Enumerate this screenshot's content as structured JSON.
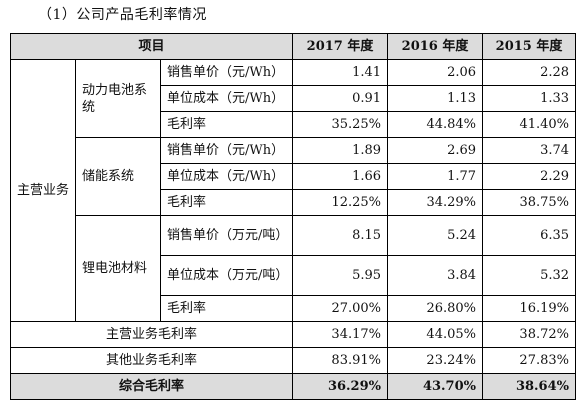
{
  "heading": "（1）公司产品毛利率情况",
  "header": {
    "item": "项目",
    "y2017": "2017 年度",
    "y2016": "2016 年度",
    "y2015": "2015 年度"
  },
  "main_business_label": "主营业务",
  "groups": [
    {
      "name": "动力电池系统",
      "rows": [
        {
          "label": "销售单价（元/Wh）",
          "v2017": "1.41",
          "v2016": "2.06",
          "v2015": "2.28"
        },
        {
          "label": "单位成本（元/Wh）",
          "v2017": "0.91",
          "v2016": "1.13",
          "v2015": "1.33"
        },
        {
          "label": "毛利率",
          "v2017": "35.25%",
          "v2016": "44.84%",
          "v2015": "41.40%"
        }
      ]
    },
    {
      "name": "储能系统",
      "rows": [
        {
          "label": "销售单价（元/Wh）",
          "v2017": "1.89",
          "v2016": "2.69",
          "v2015": "3.74"
        },
        {
          "label": "单位成本（元/Wh）",
          "v2017": "1.66",
          "v2016": "1.77",
          "v2015": "2.29"
        },
        {
          "label": "毛利率",
          "v2017": "12.25%",
          "v2016": "34.29%",
          "v2015": "38.75%"
        }
      ]
    },
    {
      "name": "锂电池材料",
      "rows": [
        {
          "label": "销售单价（万元/吨）",
          "v2017": "8.15",
          "v2016": "5.24",
          "v2015": "6.35"
        },
        {
          "label": "单位成本（万元/吨）",
          "v2017": "5.95",
          "v2016": "3.84",
          "v2015": "5.32"
        },
        {
          "label": "毛利率",
          "v2017": "27.00%",
          "v2016": "26.80%",
          "v2015": "16.19%"
        }
      ]
    }
  ],
  "summary": [
    {
      "label": "主营业务毛利率",
      "v2017": "34.17%",
      "v2016": "44.05%",
      "v2015": "38.72%"
    },
    {
      "label": "其他业务毛利率",
      "v2017": "83.91%",
      "v2016": "23.24%",
      "v2015": "27.83%"
    }
  ],
  "total": {
    "label": "综合毛利率",
    "v2017": "36.29%",
    "v2016": "43.70%",
    "v2015": "38.64%"
  },
  "colors": {
    "header_bg": "#dcdcdc",
    "border": "#000000"
  }
}
